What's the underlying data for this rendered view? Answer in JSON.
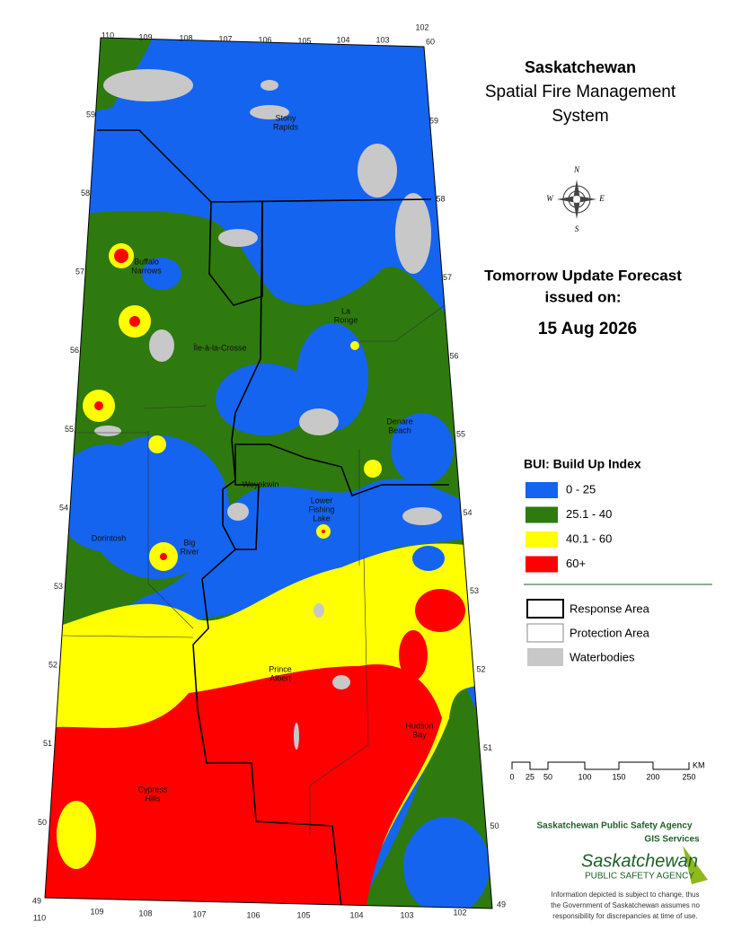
{
  "header": {
    "title": "Saskatchewan",
    "subtitle_lines": [
      "Spatial Fire Management",
      "System"
    ]
  },
  "forecast": {
    "heading_lines": [
      "Tomorrow Update Forecast",
      "issued on:"
    ],
    "date": "15 Aug 2026"
  },
  "bui_legend": {
    "title": "BUI: Build Up Index",
    "items": [
      {
        "label": "0 - 25",
        "color": "#1464f0"
      },
      {
        "label": "25.1 - 40",
        "color": "#2e7a0e"
      },
      {
        "label": "40.1 - 60",
        "color": "#ffff00"
      },
      {
        "label": "60+",
        "color": "#ff0000"
      }
    ]
  },
  "boundary_legend": [
    "Response Area",
    "Protection Area",
    "Waterbodies"
  ],
  "scale_bar": {
    "labels": [
      0,
      25,
      50,
      100,
      150,
      200,
      250
    ],
    "unit": "KM"
  },
  "compass": [
    "N",
    "E",
    "S",
    "W"
  ],
  "places": [
    {
      "lines": [
        "Stony",
        "Rapids"
      ]
    },
    {
      "lines": [
        "Buffalo",
        "Narrows"
      ]
    },
    {
      "lines": [
        "La",
        "Ronge"
      ]
    },
    {
      "lines": [
        "Île-à-la-Crosse"
      ]
    },
    {
      "lines": [
        "Denare",
        "Beach"
      ]
    },
    {
      "lines": [
        "Weyakwin"
      ]
    },
    {
      "lines": [
        "Lower",
        "Fishing",
        "Lake"
      ]
    },
    {
      "lines": [
        "Dorintosh"
      ]
    },
    {
      "lines": [
        "Big",
        "River"
      ]
    },
    {
      "lines": [
        "Prince",
        "Albert"
      ]
    },
    {
      "lines": [
        "Hudson",
        "Bay"
      ]
    },
    {
      "lines": [
        "Cypress",
        "Hills"
      ]
    }
  ],
  "graticule": {
    "top": [
      110,
      109,
      108,
      107,
      106,
      105,
      104,
      103,
      102
    ],
    "top_right_lat": 60,
    "left": [
      59,
      58,
      57,
      56,
      55,
      54,
      53,
      52,
      51,
      50,
      49
    ],
    "right": [
      59,
      58,
      57,
      56,
      55,
      54,
      53,
      52,
      51,
      50,
      49
    ],
    "bottom": [
      110,
      109,
      108,
      107,
      106,
      105,
      104,
      103,
      102
    ]
  },
  "agency": {
    "name": "Saskatchewan Public Safety Agency",
    "unit": "GIS  Services",
    "logo_main": "Saskatchewan",
    "logo_sub": "PUBLIC SAFETY AGENCY"
  },
  "disclaimer": [
    "Information depicted is subject to change, thus",
    "the Government of Saskatchewan assumes no",
    "responsibility for discrepancies at time of use."
  ]
}
